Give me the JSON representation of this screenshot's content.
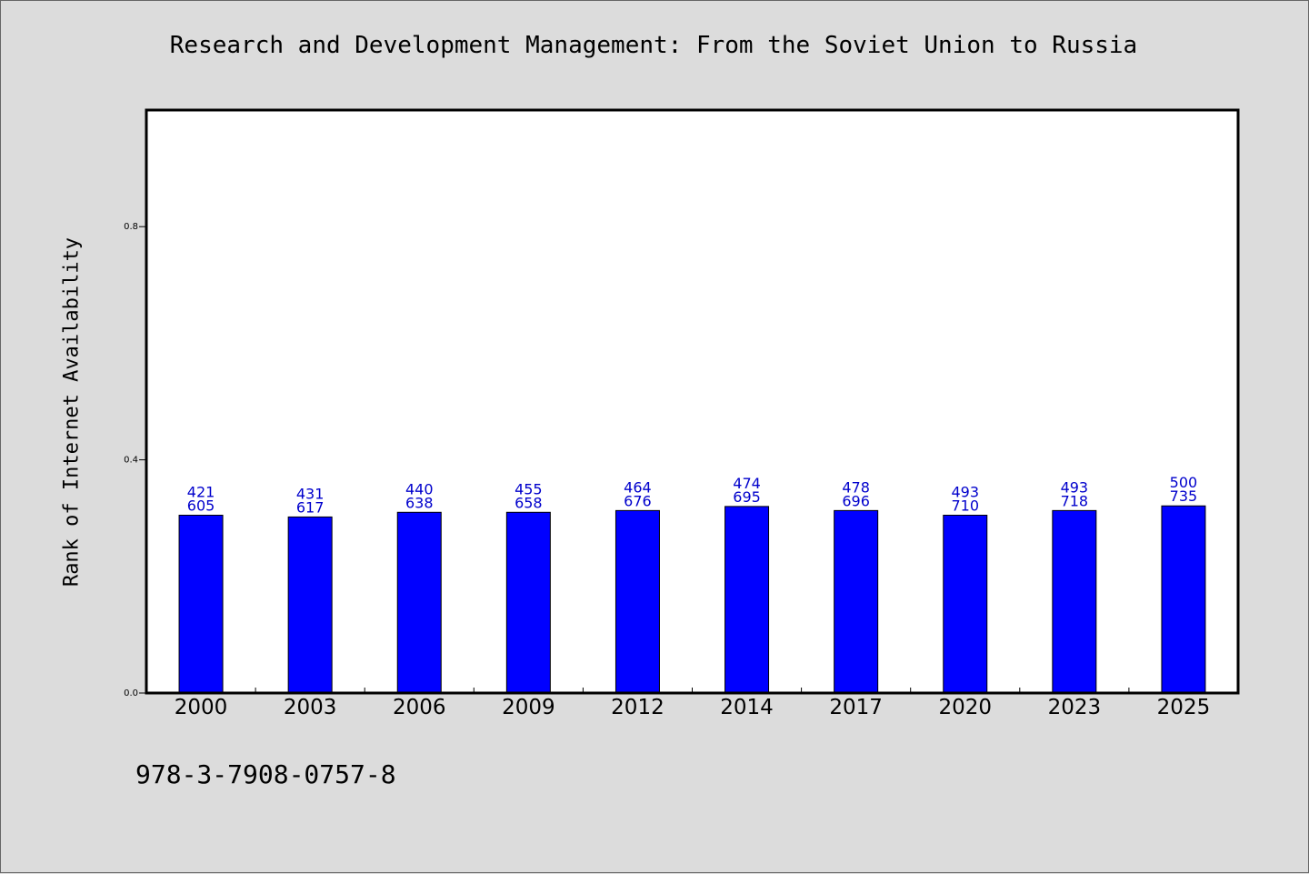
{
  "chart_data": {
    "type": "bar",
    "title": "Research and Development Management: From the Soviet Union to Russia",
    "xlabel": "",
    "ylabel": "Rank of Internet Availability",
    "categories": [
      "2000",
      "2003",
      "2006",
      "2009",
      "2012",
      "2014",
      "2017",
      "2020",
      "2023",
      "2025"
    ],
    "values": [
      0.305,
      0.302,
      0.31,
      0.31,
      0.313,
      0.32,
      0.313,
      0.305,
      0.313,
      0.321
    ],
    "data_labels_top": [
      "421",
      "431",
      "440",
      "455",
      "464",
      "474",
      "478",
      "493",
      "493",
      "500"
    ],
    "data_labels_bottom": [
      "605",
      "617",
      "638",
      "658",
      "676",
      "695",
      "696",
      "710",
      "718",
      "735"
    ],
    "ylim": [
      0,
      1.0
    ],
    "yticks": [
      "0.0",
      "0.4",
      "0.8"
    ],
    "grid": false,
    "bar_color": "#0000ff",
    "label_color": "#0000cc"
  },
  "footnote": "978-3-7908-0757-8"
}
